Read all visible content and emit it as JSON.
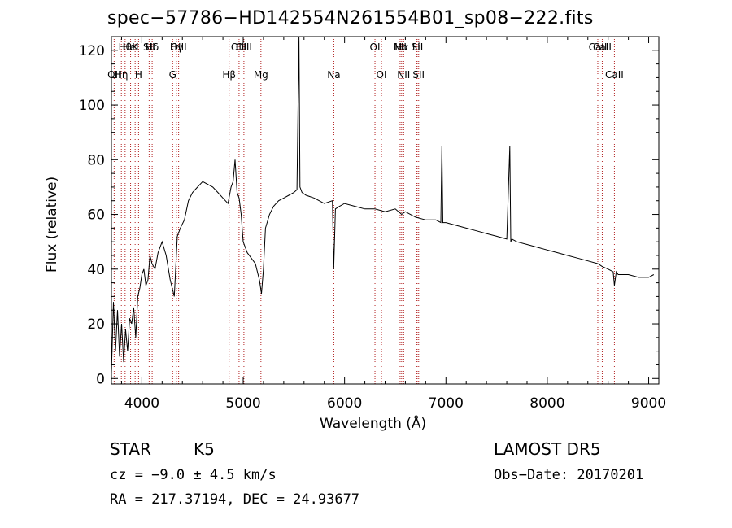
{
  "chart_data": {
    "type": "line",
    "title": "spec−57786−HD142554N261554B01_sp08−222.fits",
    "xlabel": "Wavelength (Å)",
    "ylabel": "Flux (relative)",
    "xlim": [
      3700,
      9100
    ],
    "ylim": [
      -2,
      125
    ],
    "xticks": [
      4000,
      5000,
      6000,
      7000,
      8000,
      9000
    ],
    "yticks": [
      0,
      20,
      40,
      60,
      80,
      100,
      120
    ],
    "grid": false,
    "line_color": "#000000",
    "marker_line_color": "#b22222",
    "series": [
      {
        "x": [
          3700,
          3720,
          3740,
          3760,
          3780,
          3800,
          3820,
          3840,
          3860,
          3880,
          3900,
          3920,
          3940,
          3960,
          3980,
          4000,
          4020,
          4040,
          4060,
          4080,
          4100,
          4130,
          4160,
          4200,
          4240,
          4280,
          4320,
          4350,
          4380,
          4420,
          4460,
          4500,
          4550,
          4600,
          4650,
          4700,
          4750,
          4800,
          4850,
          4880,
          4900,
          4920,
          4940,
          4960,
          4980,
          5000,
          5040,
          5080,
          5120,
          5160,
          5180,
          5200,
          5220,
          5260,
          5300,
          5350,
          5400,
          5450,
          5500,
          5530,
          5550,
          5560,
          5580,
          5620,
          5700,
          5800,
          5880,
          5893,
          5910,
          5950,
          6000,
          6100,
          6200,
          6300,
          6400,
          6500,
          6563,
          6600,
          6700,
          6800,
          6900,
          6950,
          6960,
          6970,
          7000,
          7100,
          7200,
          7300,
          7400,
          7500,
          7600,
          7630,
          7640,
          7650,
          7700,
          7800,
          7900,
          8000,
          8100,
          8200,
          8300,
          8400,
          8500,
          8540,
          8600,
          8650,
          8662,
          8680,
          8700,
          8800,
          8900,
          9000,
          9050
        ],
        "y": [
          2,
          28,
          10,
          25,
          8,
          20,
          6,
          18,
          10,
          22,
          20,
          26,
          15,
          30,
          33,
          38,
          40,
          34,
          36,
          45,
          42,
          40,
          46,
          50,
          45,
          36,
          30,
          52,
          55,
          58,
          65,
          68,
          70,
          72,
          71,
          70,
          68,
          66,
          64,
          70,
          72,
          80,
          68,
          66,
          60,
          50,
          46,
          44,
          42,
          36,
          31,
          40,
          55,
          60,
          63,
          65,
          66,
          67,
          68,
          69,
          125,
          70,
          68,
          67,
          66,
          64,
          65,
          40,
          62,
          63,
          64,
          63,
          62,
          62,
          61,
          62,
          60,
          61,
          59,
          58,
          58,
          57,
          85,
          57,
          57,
          56,
          55,
          54,
          53,
          52,
          51,
          85,
          50,
          51,
          50,
          49,
          48,
          47,
          46,
          45,
          44,
          43,
          42,
          41,
          40,
          39,
          34,
          39,
          38,
          38,
          37,
          37,
          38
        ]
      }
    ],
    "line_markers": [
      {
        "wavelength": 3727,
        "row": 1,
        "label": "OII"
      },
      {
        "wavelength": 3798,
        "row": 1,
        "label": "Hη"
      },
      {
        "wavelength": 3835,
        "row": 0,
        "label": "Hθ"
      },
      {
        "wavelength": 3889,
        "row": 0,
        "label": "HeI"
      },
      {
        "wavelength": 3934,
        "row": 0,
        "label": "K"
      },
      {
        "wavelength": 3968,
        "row": 1,
        "label": "H"
      },
      {
        "wavelength": 4072,
        "row": 0,
        "label": "SII"
      },
      {
        "wavelength": 4102,
        "row": 0,
        "label": "Hδ"
      },
      {
        "wavelength": 4304,
        "row": 1,
        "label": "G"
      },
      {
        "wavelength": 4341,
        "row": 0,
        "label": "Hγ"
      },
      {
        "wavelength": 4363,
        "row": 0,
        "label": "OIII"
      },
      {
        "wavelength": 4861,
        "row": 1,
        "label": "Hβ"
      },
      {
        "wavelength": 4959,
        "row": 0,
        "label": "OIII"
      },
      {
        "wavelength": 5007,
        "row": 0,
        "label": "OIII"
      },
      {
        "wavelength": 5175,
        "row": 1,
        "label": "Mg"
      },
      {
        "wavelength": 5894,
        "row": 1,
        "label": "Na"
      },
      {
        "wavelength": 6300,
        "row": 0,
        "label": "OI"
      },
      {
        "wavelength": 6364,
        "row": 1,
        "label": "OI"
      },
      {
        "wavelength": 6548,
        "row": 0,
        "label": "NII"
      },
      {
        "wavelength": 6563,
        "row": 0,
        "label": "Hα"
      },
      {
        "wavelength": 6583,
        "row": 1,
        "label": "NII"
      },
      {
        "wavelength": 6708,
        "row": 0,
        "label": "Li"
      },
      {
        "wavelength": 6716,
        "row": 0,
        "label": "SII"
      },
      {
        "wavelength": 6731,
        "row": 1,
        "label": "SII"
      },
      {
        "wavelength": 8498,
        "row": 0,
        "label": "CaII"
      },
      {
        "wavelength": 8542,
        "row": 0,
        "label": "CaII"
      },
      {
        "wavelength": 8662,
        "row": 1,
        "label": "CaII"
      }
    ]
  },
  "info": {
    "object_class": "STAR",
    "subclass": "K5",
    "survey": "LAMOST DR5",
    "cz": "cz = −9.0 ± 4.5 km/s",
    "obs_date": "Obs−Date: 20170201",
    "radec": "RA = 217.37194, DEC =  24.93677"
  }
}
